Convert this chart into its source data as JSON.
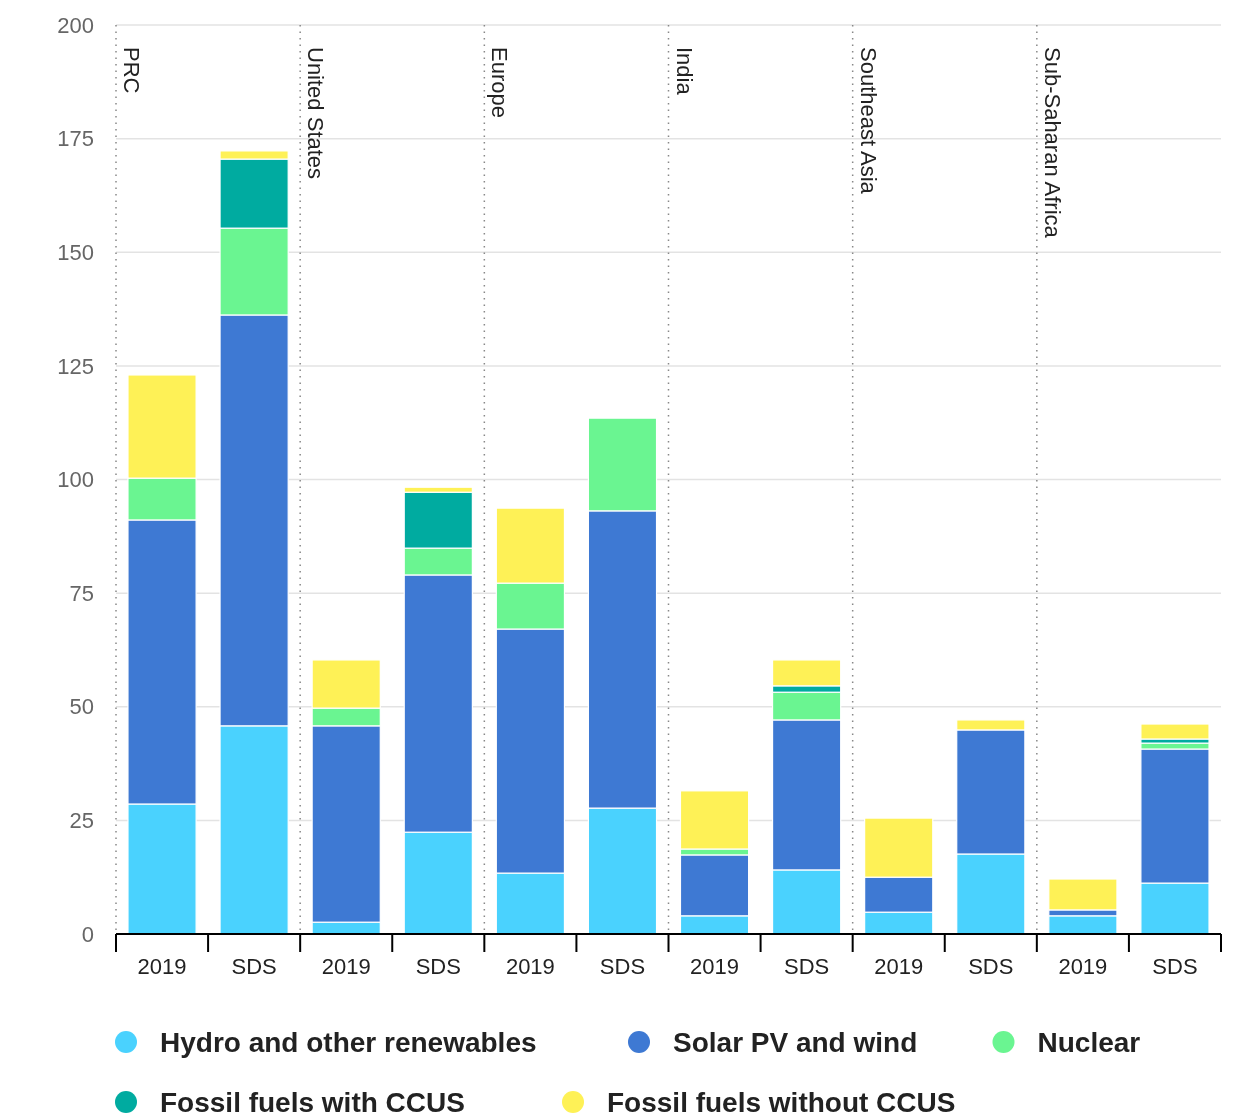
{
  "chart_data": {
    "type": "bar",
    "stacked": true,
    "categories": [
      "2019",
      "SDS",
      "2019",
      "SDS",
      "2019",
      "SDS",
      "2019",
      "SDS",
      "2019",
      "SDS",
      "2019",
      "SDS"
    ],
    "series": [
      {
        "name": "Hydro and other renewables",
        "color": "#4ad2fe",
        "values": [
          28.6,
          45.8,
          2.6,
          22.4,
          13.4,
          27.7,
          4.0,
          14.1,
          4.8,
          17.6,
          4.0,
          11.2
        ]
      },
      {
        "name": "Solar PV and wind",
        "color": "#3e79d3",
        "values": [
          62.5,
          90.4,
          43.2,
          56.6,
          53.7,
          65.4,
          13.4,
          33.0,
          7.7,
          27.3,
          1.3,
          29.5
        ]
      },
      {
        "name": "Nuclear",
        "color": "#6af591",
        "values": [
          9.2,
          19.1,
          3.9,
          5.9,
          10.1,
          20.4,
          1.3,
          6.1,
          null,
          null,
          null,
          1.3
        ]
      },
      {
        "name": "Fossil fuels with CCUS",
        "color": "#00aba0",
        "values": [
          null,
          15.2,
          null,
          12.3,
          null,
          null,
          null,
          1.4,
          null,
          null,
          null,
          0.9
        ]
      },
      {
        "name": "Fossil fuels without CCUS",
        "color": "#fef156",
        "values": [
          22.7,
          1.8,
          10.6,
          1.1,
          16.5,
          null,
          12.8,
          5.7,
          13.0,
          2.2,
          6.8,
          3.3
        ]
      }
    ],
    "annotations": [
      "PRC",
      "United States",
      "Europe",
      "India",
      "Southeast Asia",
      "Sub-Saharan Africa"
    ],
    "ylim": [
      0,
      200
    ],
    "yticks": [
      0,
      25,
      50,
      75,
      100,
      125,
      150,
      175,
      200
    ],
    "grid": "y",
    "legend": "bottom"
  }
}
